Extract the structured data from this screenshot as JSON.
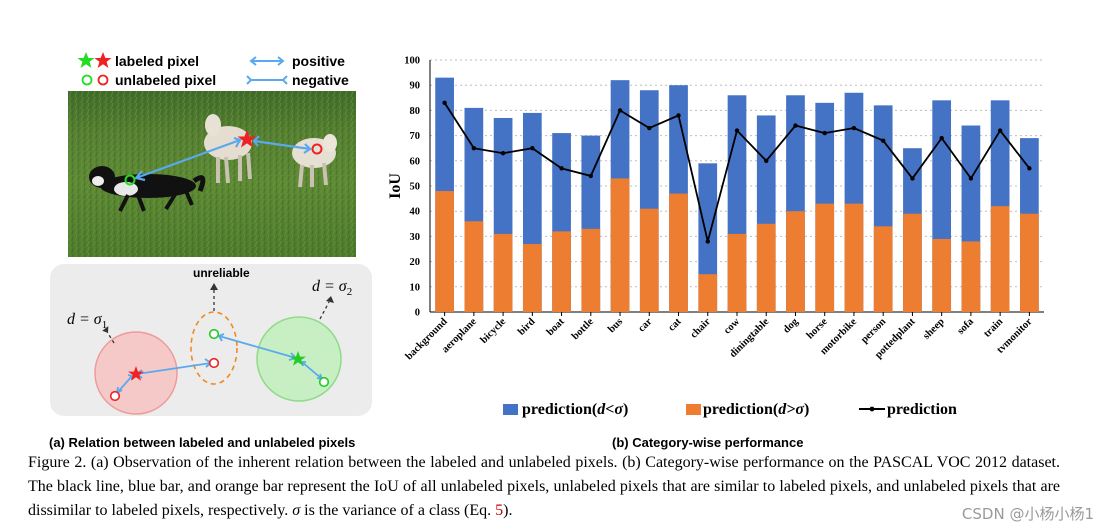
{
  "panel_a": {
    "legend": {
      "labeled": "labeled pixel",
      "unlabeled": "unlabeled pixel",
      "positive": "positive",
      "negative": "negative"
    },
    "diagram": {
      "unreliable": "unreliable",
      "d_sigma1": "d = σ",
      "d_sigma1_sub": "1",
      "d_sigma2": "d = σ",
      "d_sigma2_sub": "2"
    },
    "subcaption": "(a) Relation between labeled and unlabeled pixels",
    "colors": {
      "green": "#22dd22",
      "red": "#ee2222",
      "arrow": "#5aa9ee"
    }
  },
  "panel_b": {
    "subcaption": "(b) Category-wise performance",
    "legend": {
      "blue": "prediction(",
      "blue_math": "d<σ",
      "orange": "prediction(",
      "orange_math": "d>σ",
      "line": "prediction",
      "close": ")"
    }
  },
  "chart_data": {
    "type": "bar",
    "ylabel": "IoU",
    "ylim": [
      0,
      100
    ],
    "yticks": [
      0,
      10,
      20,
      30,
      40,
      50,
      60,
      70,
      80,
      90,
      100
    ],
    "grid": "horizontal dotted",
    "categories": [
      "background",
      "aeroplane",
      "bicycle",
      "bird",
      "boat",
      "bottle",
      "bus",
      "car",
      "cat",
      "chair",
      "cow",
      "diningtable",
      "dog",
      "horse",
      "motorbike",
      "person",
      "pottedplant",
      "sheep",
      "sofa",
      "train",
      "tvmonitor"
    ],
    "series": [
      {
        "name": "prediction(d<σ)",
        "kind": "bar",
        "color": "#4472c4",
        "values": [
          93,
          81,
          77,
          79,
          71,
          70,
          92,
          88,
          90,
          59,
          86,
          78,
          86,
          83,
          87,
          82,
          65,
          84,
          74,
          84,
          69
        ]
      },
      {
        "name": "prediction(d>σ)",
        "kind": "bar",
        "color": "#ed7d31",
        "values": [
          48,
          36,
          31,
          27,
          32,
          33,
          53,
          41,
          47,
          15,
          31,
          35,
          40,
          43,
          43,
          34,
          39,
          29,
          28,
          42,
          39
        ]
      },
      {
        "name": "prediction",
        "kind": "line",
        "color": "#000000",
        "values": [
          83,
          65,
          63,
          65,
          57,
          54,
          80,
          73,
          78,
          28,
          72,
          60,
          74,
          71,
          73,
          68,
          53,
          69,
          53,
          72,
          57
        ]
      }
    ]
  },
  "caption": {
    "part1": "Figure 2. (a) Observation of the inherent relation between the labeled and unlabeled pixels. (b) Category-wise performance on the PASCAL VOC 2012 dataset. The black line, blue bar, and orange bar represent the IoU of all unlabeled pixels, unlabeled pixels that are similar to labeled pixels, and unlabeled pixels that are dissimilar to labeled pixels, respectively. ",
    "sigma": "σ",
    "part2": " is the variance of a class (Eq. ",
    "ref": "5",
    "part3": ")."
  },
  "watermark": "CSDN @小杨小杨1"
}
